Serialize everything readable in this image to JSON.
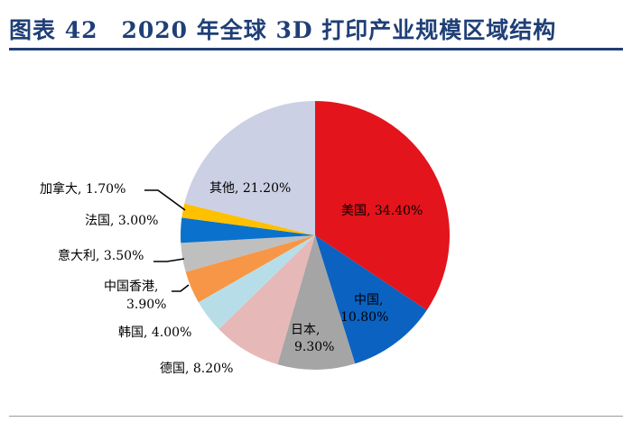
{
  "title": "图表 42　2020 年全球 3D 打印产业规模区域结构",
  "chart_data": {
    "type": "pie",
    "title": "2020 年全球 3D 打印产业规模区域结构",
    "start": "top-clockwise",
    "slices": [
      {
        "name": "美国",
        "value": 34.4,
        "label": "美国, 34.40%",
        "color": "#e3141c"
      },
      {
        "name": "中国",
        "value": 10.8,
        "label1": "中国,",
        "label2": "10.80%",
        "color": "#0b62c1"
      },
      {
        "name": "日本",
        "value": 9.3,
        "label1": "日本,",
        "label2": "9.30%",
        "color": "#a5a5a5"
      },
      {
        "name": "德国",
        "value": 8.2,
        "label": "德国, 8.20%",
        "color": "#e6b8b7"
      },
      {
        "name": "韩国",
        "value": 4.0,
        "label": "韩国, 4.00%",
        "color": "#b7dee8"
      },
      {
        "name": "中国香港",
        "value": 3.9,
        "label1": "中国香港,",
        "label2": "3.90%",
        "color": "#f79646"
      },
      {
        "name": "意大利",
        "value": 3.5,
        "label": "意大利, 3.50%",
        "color": "#bfbfbf"
      },
      {
        "name": "法国",
        "value": 3.0,
        "label": "法国, 3.00%",
        "color": "#0a72cc"
      },
      {
        "name": "加拿大",
        "value": 1.7,
        "label": "加拿大, 1.70%",
        "color": "#ffc000"
      },
      {
        "name": "其他",
        "value": 21.2,
        "label": "其他, 21.20%",
        "color": "#cbd0e4"
      }
    ]
  }
}
